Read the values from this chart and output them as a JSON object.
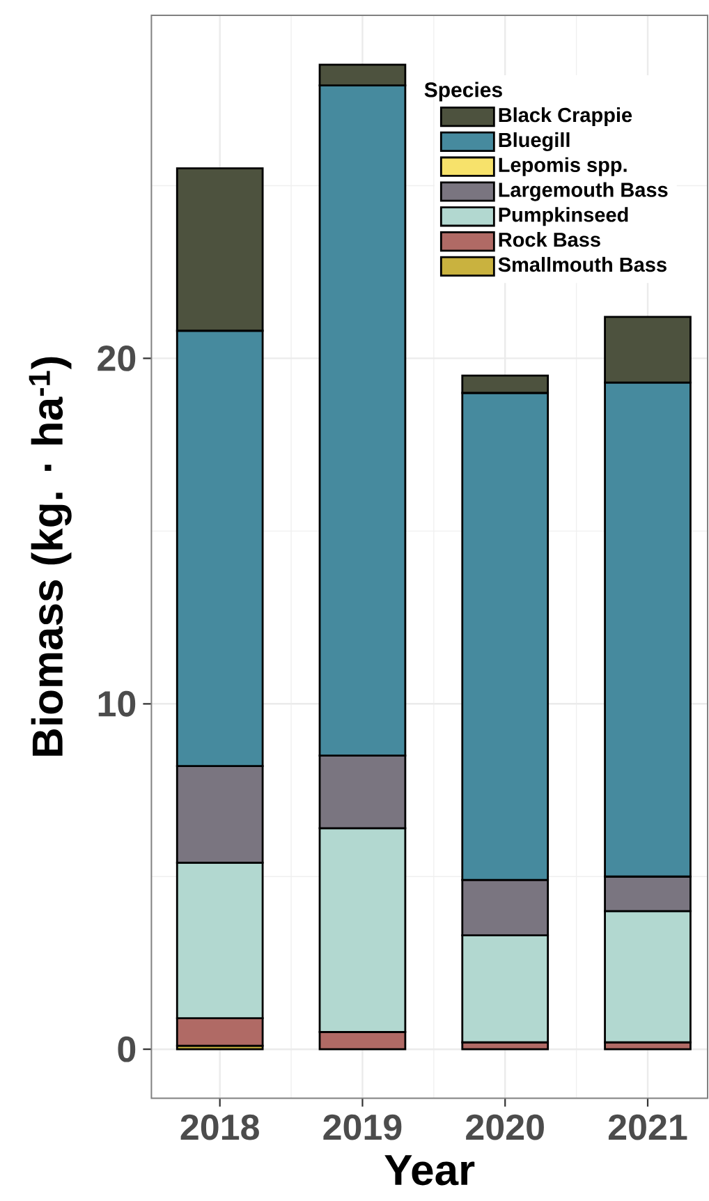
{
  "chart_data": {
    "type": "bar",
    "stacked": true,
    "xlabel": "Year",
    "ylabel": "Biomass (kg. · ha$^{-1}$)",
    "legend_title": "Species",
    "categories": [
      "2018",
      "2019",
      "2020",
      "2021"
    ],
    "series": [
      {
        "name": "Smallmouth Bass",
        "color": "#c9b23f",
        "values": [
          0.1,
          null,
          null,
          null
        ]
      },
      {
        "name": "Rock Bass",
        "color": "#b06a65",
        "values": [
          0.8,
          0.5,
          0.2,
          0.2
        ]
      },
      {
        "name": "Pumpkinseed",
        "color": "#b2d8d0",
        "values": [
          4.5,
          5.9,
          3.1,
          3.8
        ]
      },
      {
        "name": "Largemouth Bass",
        "color": "#7a7580",
        "values": [
          2.8,
          2.1,
          1.6,
          1.0
        ]
      },
      {
        "name": "Lepomis spp.",
        "color": "#f7e26b",
        "values": [
          null,
          null,
          null,
          null
        ]
      },
      {
        "name": "Bluegill",
        "color": "#468a9e",
        "values": [
          12.6,
          19.4,
          14.1,
          14.3
        ]
      },
      {
        "name": "Black Crappie",
        "color": "#4d523e",
        "values": [
          4.7,
          0.6,
          0.5,
          1.9
        ]
      }
    ],
    "ylim": [
      -1.42,
      29.93
    ],
    "yticks": [
      0,
      10,
      20
    ],
    "grid": true,
    "legend": "top right"
  }
}
